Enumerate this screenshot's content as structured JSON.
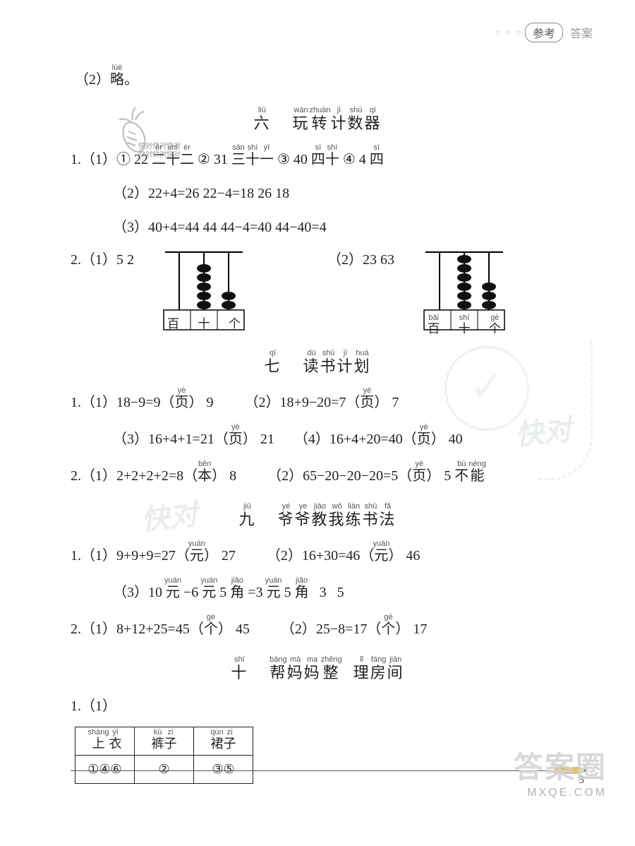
{
  "header": {
    "dots": "○ ○ ○",
    "pill": "参考",
    "answer": "答案"
  },
  "top_line": {
    "num": "（2）",
    "cn": "略",
    "py": "lüè",
    "period": "。"
  },
  "section6": {
    "num": "六",
    "num_py": "liù",
    "title_chars": [
      "玩",
      "转",
      "计",
      "数",
      "器"
    ],
    "title_py": [
      "wán",
      "zhuàn",
      "jì",
      "shù",
      "qì"
    ]
  },
  "s6_1_1": {
    "lead": "1.（1）",
    "c1": "① 22  ",
    "r1_cn": [
      "二",
      "十",
      "二"
    ],
    "r1_py": [
      "èr",
      "shí",
      "èr"
    ],
    "c2": "  ② 31  ",
    "r2_cn": [
      "三",
      "十",
      "一"
    ],
    "r2_py": [
      "sān",
      "shí",
      "yī"
    ],
    "c3": "  ③ 40  ",
    "r3_cn": [
      "四",
      "十"
    ],
    "r3_py": [
      "sì",
      "shí"
    ],
    "c4": "  ④ 4  ",
    "r4_cn": [
      "四"
    ],
    "r4_py": [
      "sì"
    ]
  },
  "s6_1_2": "（2）22+4=26   22−4=18   26   18",
  "s6_1_3": "（3）40+4=44   44   44−4=40   44−40=4",
  "s6_2": {
    "a": "2.（1）5   2",
    "b": "（2）23   63"
  },
  "abacus1": {
    "labels": [
      "百",
      "十",
      "个"
    ],
    "beads": [
      0,
      5,
      2
    ],
    "use_pinyin": false
  },
  "abacus2": {
    "labels": [
      "百",
      "十",
      "个"
    ],
    "labels_py": [
      "bǎi",
      "shí",
      "gè"
    ],
    "beads": [
      0,
      6,
      3
    ],
    "use_pinyin": true
  },
  "section7": {
    "num": "七",
    "num_py": "qī",
    "title_chars": [
      "读",
      "书",
      "计",
      "划"
    ],
    "title_py": [
      "dú",
      "shū",
      "jì",
      "huà"
    ]
  },
  "s7_1a": {
    "lead": "1.（1）18−9=9（",
    "u_cn": "页",
    "u_py": "yè",
    "tail": "）  9"
  },
  "s7_1b": {
    "lead": "（2）18+9−20=7（",
    "u_cn": "页",
    "u_py": "yè",
    "tail": "）  7"
  },
  "s7_1c": {
    "lead": "（3）16+4+1=21（",
    "u_cn": "页",
    "u_py": "yè",
    "tail": "）  21"
  },
  "s7_1d": {
    "lead": "（4）16+4+20=40（",
    "u_cn": "页",
    "u_py": "yè",
    "tail": "）  40"
  },
  "s7_2a": {
    "lead": "2.（1）2+2+2+2=8（",
    "u_cn": "本",
    "u_py": "běn",
    "tail": "）  8"
  },
  "s7_2b": {
    "lead": "（2）65−20−20−20=5（",
    "u_cn": "页",
    "u_py": "yè",
    "tail": "）  5   ",
    "ex_cn": [
      "不",
      "能"
    ],
    "ex_py": [
      "bù",
      "néng"
    ]
  },
  "section9": {
    "num": "九",
    "num_py": "jiǔ",
    "title_chars": [
      "爷",
      "爷",
      "教",
      "我",
      "练",
      "书",
      "法"
    ],
    "title_py": [
      "yé",
      "ye",
      "jiāo",
      "wǒ",
      "liàn",
      "shū",
      "fǎ"
    ]
  },
  "s9_1a": {
    "lead": "1.（1）9+9+9=27（",
    "u_cn": "元",
    "u_py": "yuán",
    "tail": "）  27"
  },
  "s9_1b": {
    "lead": "（2）16+30=46（",
    "u_cn": "元",
    "u_py": "yuán",
    "tail": "）  46"
  },
  "s9_1c": {
    "parts": [
      {
        "t": "（3）10 "
      },
      {
        "rb": "元",
        "py": "yuán"
      },
      {
        "t": " −6 "
      },
      {
        "rb": "元",
        "py": "yuán"
      },
      {
        "t": " 5 "
      },
      {
        "rb": "角",
        "py": "jiǎo"
      },
      {
        "t": " =3 "
      },
      {
        "rb": "元",
        "py": "yuán"
      },
      {
        "t": " 5 "
      },
      {
        "rb": "角",
        "py": "jiǎo"
      },
      {
        "t": "   3   5"
      }
    ]
  },
  "s9_2a": {
    "lead": "2.（1）8+12+25=45（",
    "u_cn": "个",
    "u_py": "gè",
    "tail": "）  45"
  },
  "s9_2b": {
    "lead": "（2）25−8=17（",
    "u_cn": "个",
    "u_py": "gè",
    "tail": "）  17"
  },
  "section10": {
    "num": "十",
    "num_py": "shí",
    "title_chars": [
      "帮",
      "妈",
      "妈",
      "整",
      " ",
      "理",
      "房",
      "间"
    ],
    "title_py": [
      "bāng",
      "mā",
      "ma",
      "zhěng",
      "",
      "lǐ",
      "fáng",
      "jiān"
    ]
  },
  "s10_lead": "1.（1）",
  "table": {
    "h1_cn": [
      "上",
      "衣"
    ],
    "h1_py": [
      "shàng",
      "yī"
    ],
    "h2_cn": [
      "裤",
      "子"
    ],
    "h2_py": [
      "kù",
      "zi"
    ],
    "h3_cn": [
      "裙",
      "子"
    ],
    "h3_py": [
      "qún",
      "zi"
    ],
    "r1": "①④⑥",
    "r2": "②",
    "r3": "③⑤"
  },
  "page_number": "3",
  "footer": {
    "big": "答案圈",
    "small": "MXQE.COM"
  },
  "carrot_text": "快对快对快对\n快对快对快对"
}
